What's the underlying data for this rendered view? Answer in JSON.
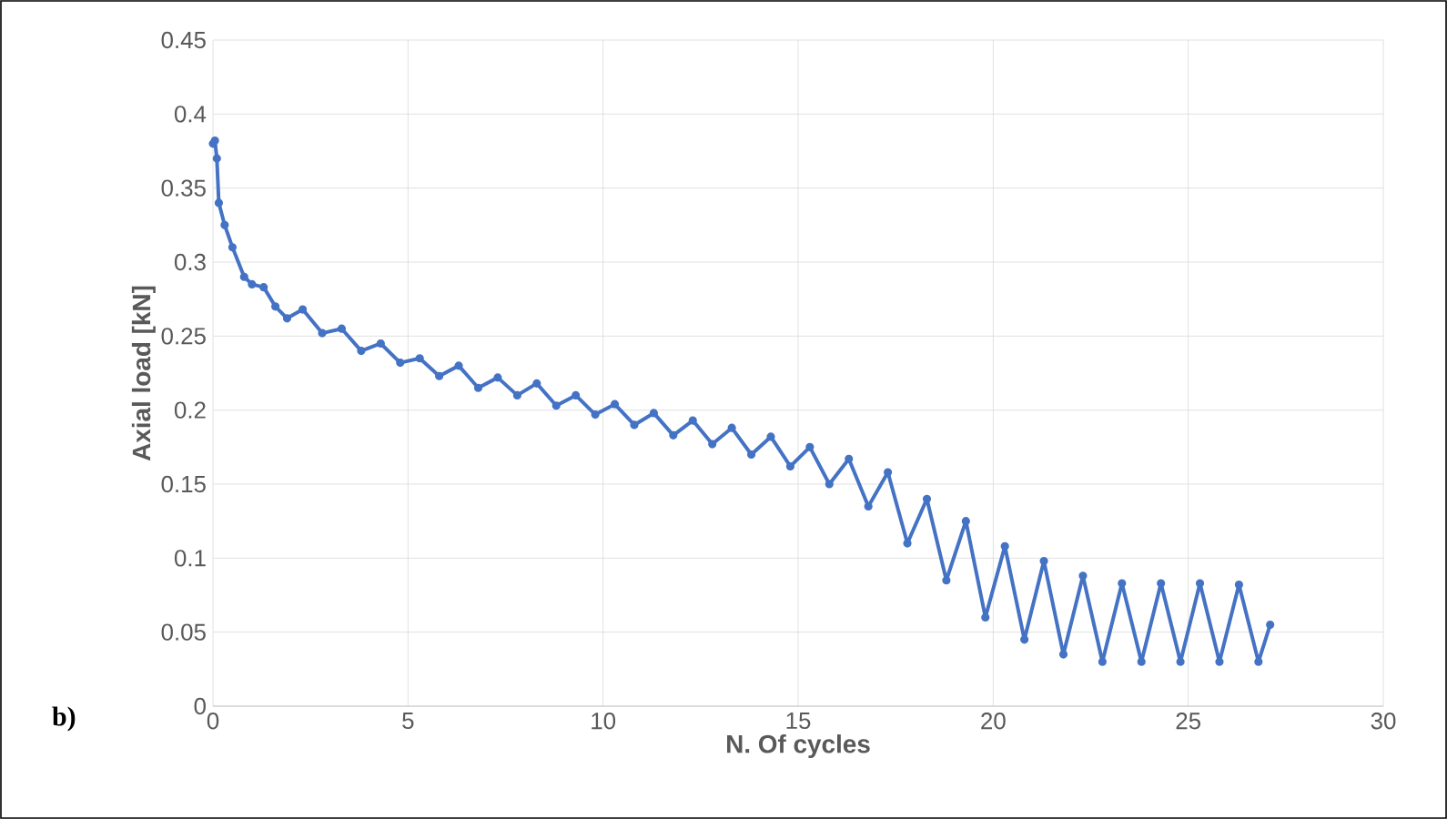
{
  "chart_data": {
    "type": "line",
    "xlabel": "N. Of cycles",
    "ylabel": "Axial load [kN]",
    "annotations": [
      "b)"
    ],
    "x": [
      0,
      0.05,
      0.1,
      0.15,
      0.3,
      0.5,
      0.8,
      1.0,
      1.3,
      1.6,
      1.9,
      2.3,
      2.8,
      3.3,
      3.8,
      4.3,
      4.8,
      5.3,
      5.8,
      6.3,
      6.8,
      7.3,
      7.8,
      8.3,
      8.8,
      9.3,
      9.8,
      10.3,
      10.8,
      11.3,
      11.8,
      12.3,
      12.8,
      13.3,
      13.8,
      14.3,
      14.8,
      15.3,
      15.8,
      16.3,
      16.8,
      17.3,
      17.8,
      18.3,
      18.8,
      19.3,
      19.8,
      20.3,
      20.8,
      21.3,
      21.8,
      22.3,
      22.8,
      23.3,
      23.8,
      24.3,
      24.8,
      25.3,
      25.8,
      26.3,
      26.8,
      27.1
    ],
    "series": [
      {
        "color": "#4472c4",
        "values": [
          0.38,
          0.382,
          0.37,
          0.34,
          0.325,
          0.31,
          0.29,
          0.285,
          0.283,
          0.27,
          0.262,
          0.268,
          0.252,
          0.255,
          0.24,
          0.245,
          0.232,
          0.235,
          0.223,
          0.23,
          0.215,
          0.222,
          0.21,
          0.218,
          0.203,
          0.21,
          0.197,
          0.204,
          0.19,
          0.198,
          0.183,
          0.193,
          0.177,
          0.188,
          0.17,
          0.182,
          0.162,
          0.175,
          0.15,
          0.167,
          0.135,
          0.158,
          0.11,
          0.14,
          0.085,
          0.125,
          0.06,
          0.108,
          0.045,
          0.098,
          0.035,
          0.088,
          0.03,
          0.083,
          0.03,
          0.083,
          0.03,
          0.083,
          0.03,
          0.082,
          0.03,
          0.055
        ]
      }
    ],
    "xlim": [
      0,
      30
    ],
    "xticks": [
      0,
      5,
      10,
      15,
      20,
      25,
      30
    ],
    "ylim": [
      0,
      0.45
    ],
    "yticks": [
      0,
      0.05,
      0.1,
      0.15,
      0.2,
      0.25,
      0.3,
      0.35,
      0.4,
      0.45
    ],
    "grid": true,
    "marker": "circle",
    "line_style": "solid"
  }
}
